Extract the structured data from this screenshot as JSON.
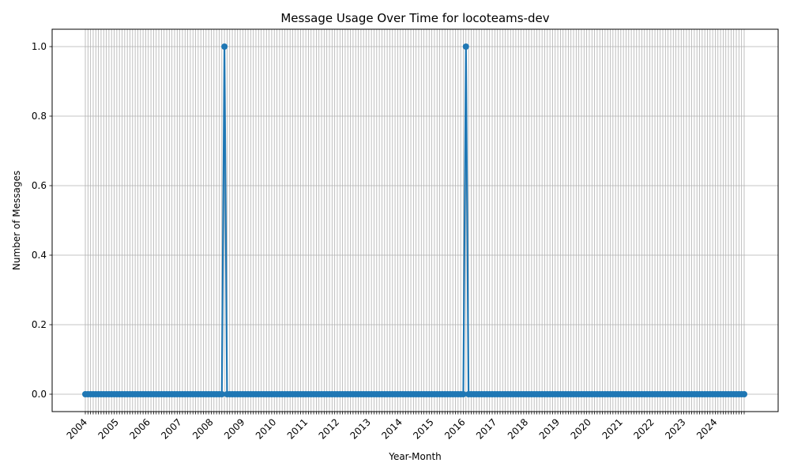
{
  "chart_data": {
    "type": "line",
    "title": "Message Usage Over Time for locoteams-dev",
    "xlabel": "Year-Month",
    "ylabel": "Number of Messages",
    "x_start": "2004-01",
    "x_end": "2024-12",
    "year_labels": [
      "2004",
      "2005",
      "2006",
      "2007",
      "2008",
      "2009",
      "2010",
      "2011",
      "2012",
      "2013",
      "2014",
      "2015",
      "2016",
      "2017",
      "2018",
      "2019",
      "2020",
      "2021",
      "2022",
      "2023",
      "2024"
    ],
    "yticks": [
      "0.0",
      "0.2",
      "0.4",
      "0.6",
      "0.8",
      "1.0"
    ],
    "ylim": [
      -0.05,
      1.05
    ],
    "grid": true,
    "series": [
      {
        "color": "#1f77b4",
        "nonzero_points": [
          {
            "x": "2008-06",
            "y": 1
          },
          {
            "x": "2016-02",
            "y": 1
          }
        ],
        "default_y": 0
      }
    ]
  }
}
